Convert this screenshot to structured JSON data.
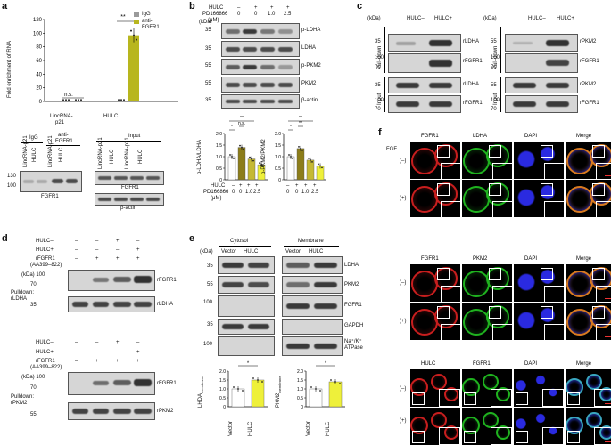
{
  "panels": {
    "a": "a",
    "b": "b",
    "c": "c",
    "d": "d",
    "e": "e",
    "f": "f"
  },
  "chart_data": [
    {
      "type": "bar",
      "panel": "a",
      "ylabel": "Fold enrichment of RNA",
      "ylim": [
        0,
        120
      ],
      "yticks": [
        "0",
        "20",
        "40",
        "60",
        "80",
        "100",
        "120"
      ],
      "categories": [
        "LincRNA-p21",
        "HULC"
      ],
      "series": [
        {
          "name": "IgG",
          "values": [
            1,
            1
          ]
        },
        {
          "name": "anti-FGFR1",
          "values": [
            1,
            97
          ]
        }
      ],
      "annotations": [
        "n.s.",
        "**"
      ]
    },
    {
      "type": "bar",
      "panel": "b-left",
      "ylabel": "p-LDHA/LDHA",
      "ylim": [
        0,
        2.0
      ],
      "yticks": [
        "0",
        "0.5",
        "1.0",
        "1.5",
        "2.0"
      ],
      "categories": [
        "1",
        "2",
        "3",
        "4"
      ],
      "values": [
        1.0,
        1.4,
        0.9,
        0.65
      ],
      "annotations": [
        "*",
        "n.s.",
        "**"
      ]
    },
    {
      "type": "bar",
      "panel": "b-right",
      "ylabel": "p-PKM2/PKM2",
      "ylim": [
        0,
        2.0
      ],
      "yticks": [
        "0",
        "0.5",
        "1.0",
        "1.5",
        "2.0"
      ],
      "categories": [
        "1",
        "2",
        "3",
        "4"
      ],
      "values": [
        1.0,
        1.35,
        0.85,
        0.6
      ],
      "annotations": [
        "*",
        "**",
        "**"
      ]
    },
    {
      "type": "bar",
      "panel": "e-left",
      "ylabel": "LHDA membrane",
      "ylim": [
        0,
        2.0
      ],
      "yticks": [
        "0",
        "0.5",
        "1.0",
        "1.5",
        "2.0"
      ],
      "categories": [
        "Vector",
        "HULC"
      ],
      "values": [
        1.0,
        1.5
      ],
      "annotations": [
        "*"
      ]
    },
    {
      "type": "bar",
      "panel": "e-right",
      "ylabel": "PKM2 membrane",
      "ylim": [
        0,
        2.0
      ],
      "yticks": [
        "0",
        "0.5",
        "1.0",
        "1.5",
        "2.0"
      ],
      "categories": [
        "Vector",
        "HULC"
      ],
      "values": [
        1.0,
        1.4
      ],
      "annotations": [
        "*"
      ]
    }
  ],
  "a": {
    "legend_igg": "IgG",
    "legend_anti1": "anti-",
    "legend_anti2": "FGFR1",
    "ylabel": "Fold enrichment of RNA",
    "cat1": "LincRNA-",
    "cat1b": "p21",
    "cat2": "HULC",
    "ns": "n.s.",
    "star": "**",
    "blot_igg": "IgG",
    "blot_anti": "anti-",
    "blot_anti2": "FGFR1",
    "blot_input": "Input",
    "kda130": "130",
    "kda100": "100",
    "fgfr1": "FGFR1",
    "fgfr1b": "FGFR1",
    "bactin": "β-actin",
    "lanes": [
      "LincRNA-p21",
      "HULC",
      "LincRNA-p21",
      "HULC"
    ],
    "input_lanes": [
      "LincRNA-p21",
      "HULC",
      "LincRNA-p21",
      "HULC"
    ]
  },
  "b": {
    "row1": "HULC",
    "row2": "PD166866",
    "row3": "(μM)",
    "hulc": [
      "–",
      "+",
      "+",
      "+"
    ],
    "pd": [
      "0",
      "0",
      "1.0",
      "2.5"
    ],
    "kda": "(kDa)",
    "k35": "35",
    "k35b": "35",
    "k55": "55",
    "k55b": "55",
    "k35c": "35",
    "bands": [
      "p-LDHA",
      "LDHA",
      "p-PKM2",
      "PKM2",
      "β-actin"
    ],
    "ns": "n.s.",
    "s1": "*",
    "s2": "**",
    "s3": "*",
    "s4": "**",
    "s5": "**",
    "xh": "HULC",
    "xp": "PD166866",
    "xu": "(μM)",
    "xvals": [
      "–",
      "+",
      "+",
      "+"
    ],
    "xdose": [
      "0",
      "0",
      "1.0",
      "2.5"
    ]
  },
  "c": {
    "kda": "(kDa)",
    "hm": "HULC–",
    "hp": "HULC+",
    "hm2": "HULC–",
    "hp2": "HULC+",
    "pulldown": "Pull-down",
    "input": "Input",
    "pulldown2": "Pull-down",
    "input2": "Input",
    "left_labels": [
      "rLDHA",
      "rFGFR1",
      "rLDHA",
      "rFGFR1"
    ],
    "right_labels": [
      "rPKM2",
      "rFGFR1",
      "rPKM2",
      "rFGFR1"
    ],
    "left_kda": [
      "35",
      "100",
      "70",
      "35",
      "100",
      "70"
    ],
    "right_kda": [
      "55",
      "100",
      "70",
      "55",
      "100",
      "70"
    ],
    "kda2": "(kDa)"
  },
  "d": {
    "t_hm": "HULC–",
    "t_hp": "HULC+",
    "t_rf": "rFGFR1",
    "t_aa": "(AA399–822)",
    "t_hm_v": [
      "–",
      "–",
      "+",
      "–"
    ],
    "t_hp_v": [
      "–",
      "–",
      "–",
      "+"
    ],
    "t_rf_v": [
      "–",
      "+",
      "+",
      "+"
    ],
    "kda": "(kDa) 100",
    "k70": "70",
    "k35": "35",
    "pd1": "Pulldown:",
    "pd1b": "rLDHA",
    "r1": "rFGFR1",
    "r2": "rLDHA",
    "b_hm": "HULC–",
    "b_hp": "HULC+",
    "b_rf": "rFGFR1",
    "b_aa": "(AA399–822)",
    "kda2": "(kDa) 100",
    "k70b": "70",
    "k55": "55",
    "pd2": "Pulldown:",
    "pd2b": "rPKM2",
    "r3": "rFGFR1",
    "r4": "rPKM2"
  },
  "e": {
    "cytosol": "Cytosol",
    "membrane": "Membrane",
    "kda": "(kDa)",
    "lanes": [
      "Vector",
      "HULC",
      "Vector",
      "HULC"
    ],
    "k35": "35",
    "k55": "55",
    "k100": "100",
    "k35b": "35",
    "k100b": "100",
    "bands": [
      "LDHA",
      "PKM2",
      "FGFR1",
      "GAPDH",
      "Na⁺/K⁺",
      "ATPase"
    ],
    "xl": "Vector",
    "xr": "HULC",
    "xl2": "Vector",
    "xr2": "HULC",
    "s1": "*",
    "s2": "*",
    "yl1": "LHDA",
    "yl1s": "membrane",
    "yl2": "PKM2",
    "yl2s": "membrane"
  },
  "f": {
    "fgf": "FGF",
    "minus": "(–)",
    "plus": "(+)",
    "minus2": "(–)",
    "plus2": "(+)",
    "minus3": "(–)",
    "plus3": "(+)",
    "row1_titles": [
      "FGFR1",
      "LDHA",
      "DAPI",
      "Merge"
    ],
    "row2_titles": [
      "FGFR1",
      "PKM2",
      "DAPI",
      "Merge"
    ],
    "row3_titles": [
      "HULC",
      "FGFR1",
      "DAPI",
      "Merge"
    ]
  }
}
